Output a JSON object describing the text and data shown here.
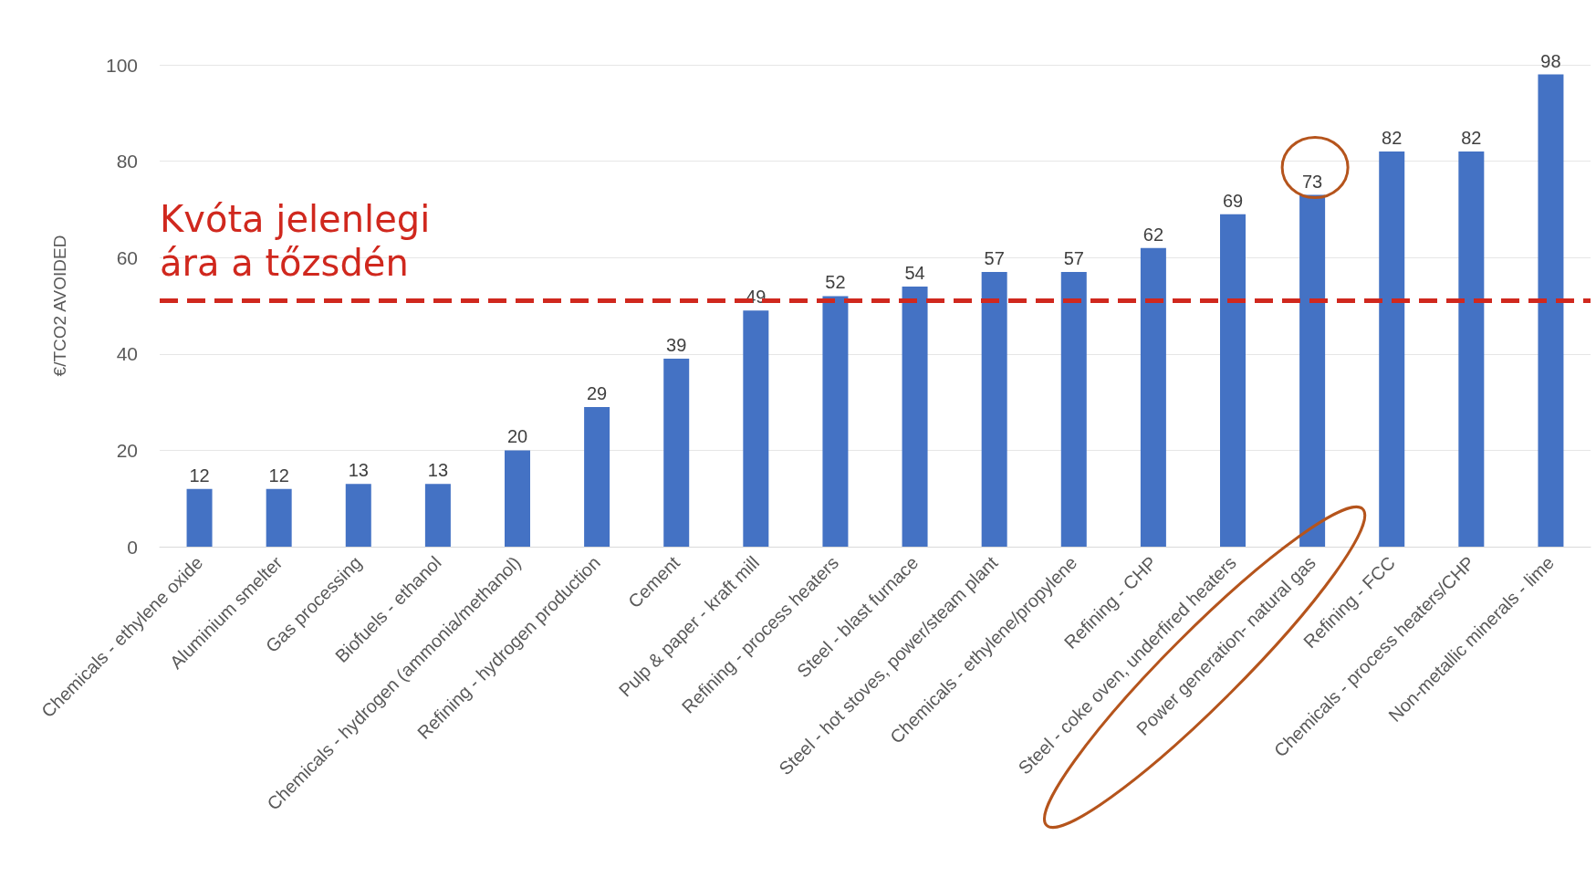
{
  "chart_data": {
    "type": "bar",
    "ylabel": "€/TCO2 AVOIDED",
    "categories": [
      "Chemicals - ethylene oxide",
      "Aluminium smelter",
      "Gas processing",
      "Biofuels - ethanol",
      "Chemicals - hydrogen (ammonia/methanol)",
      "Refining - hydrogen production",
      "Cement",
      "Pulp & paper - kraft mill",
      "Refining - process heaters",
      "Steel - blast furnace",
      "Steel - hot stoves, power/steam plant",
      "Chemicals - ethylene/propylene",
      "Refining - CHP",
      "Steel - coke oven, underfired heaters",
      "Power generation- natural gas",
      "Refining - FCC",
      "Chemicals - process heaters/CHP",
      "Non-metallic minerals - lime"
    ],
    "values": [
      12,
      12,
      13,
      13,
      20,
      29,
      39,
      49,
      52,
      54,
      57,
      57,
      62,
      69,
      73,
      82,
      82,
      98
    ],
    "color": "#4472c4",
    "data_labels": true,
    "ylim": [
      0,
      100
    ],
    "yticks": [
      0,
      20,
      40,
      60,
      80,
      100
    ],
    "grid": "y",
    "ref_lines": [
      {
        "axis": "y",
        "value": 51,
        "label": "Kvóta jelenlegi ára a tőzsdén",
        "color": "#d0281e",
        "line_style": "dashed"
      }
    ]
  }
}
